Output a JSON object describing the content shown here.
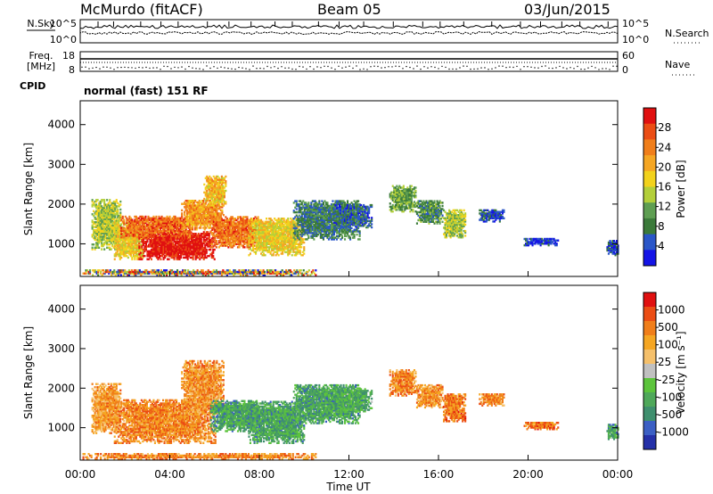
{
  "header": {
    "station": "McMurdo (fitACF)",
    "beam": "Beam 05",
    "date": "03/Jun/2015"
  },
  "left_labels": {
    "nsky": "N.Sky",
    "freq": "Freq.",
    "freq_unit": "[MHz]",
    "cpid": "CPID"
  },
  "right_labels": {
    "nsearch": "N.Search",
    "nave": "Nave"
  },
  "noise_panel": {
    "left_ticks": [
      "10^5",
      "10^0"
    ],
    "right_ticks": [
      "10^5",
      "10^0"
    ]
  },
  "freq_panel": {
    "left_ticks": [
      "18",
      "8"
    ],
    "right_ticks": [
      "60",
      "0"
    ]
  },
  "cpid_text": "normal (fast) 151 RF",
  "chart_data": [
    {
      "type": "heatmap",
      "title": "",
      "xlabel": "Time UT",
      "ylabel": "Slant Range [km]",
      "x_ticks": [
        "00:00",
        "04:00",
        "08:00",
        "12:00",
        "16:00",
        "20:00",
        "00:00"
      ],
      "xlim": [
        0,
        24
      ],
      "ylim": [
        180,
        4600
      ],
      "y_ticks": [
        1000,
        2000,
        3000,
        4000
      ],
      "colorbar": {
        "label": "Power [dB]",
        "ticks": [
          4,
          8,
          12,
          16,
          20,
          24,
          28
        ],
        "range": [
          0,
          32
        ],
        "colors": [
          "#1414e6",
          "#2a56c8",
          "#3b7a3a",
          "#5e9e52",
          "#b3cf3a",
          "#f2d21c",
          "#f5a623",
          "#f07e1a",
          "#eb4d14",
          "#e01010"
        ]
      },
      "regions": [
        {
          "t0": 0.1,
          "t1": 10.5,
          "r0": 200,
          "r1": 330,
          "level": 5
        },
        {
          "t0": 0.5,
          "t1": 1.8,
          "r0": 850,
          "r1": 2100,
          "level": 0.45
        },
        {
          "t0": 1.5,
          "t1": 2.8,
          "r0": 600,
          "r1": 1550,
          "level": 0.55
        },
        {
          "t0": 2.6,
          "t1": 6.0,
          "r0": 600,
          "r1": 1300,
          "level": 0.96
        },
        {
          "t0": 1.8,
          "t1": 5.0,
          "r0": 1150,
          "r1": 1700,
          "level": 0.8
        },
        {
          "t0": 4.5,
          "t1": 6.4,
          "r0": 1350,
          "r1": 2100,
          "level": 0.7
        },
        {
          "t0": 5.5,
          "t1": 6.5,
          "r0": 2000,
          "r1": 2700,
          "level": 0.6
        },
        {
          "t0": 5.8,
          "t1": 8.0,
          "r0": 900,
          "r1": 1700,
          "level": 0.78
        },
        {
          "t0": 7.5,
          "t1": 10.0,
          "r0": 700,
          "r1": 1650,
          "level": 0.55
        },
        {
          "t0": 9.5,
          "t1": 12.5,
          "r0": 1100,
          "r1": 2100,
          "level": 0.25
        },
        {
          "t0": 11.3,
          "t1": 13.0,
          "r0": 1400,
          "r1": 2000,
          "level": 0.2
        },
        {
          "t0": 13.8,
          "t1": 15.0,
          "r0": 1800,
          "r1": 2450,
          "level": 0.35
        },
        {
          "t0": 15.0,
          "t1": 16.2,
          "r0": 1500,
          "r1": 2100,
          "level": 0.3
        },
        {
          "t0": 16.2,
          "t1": 17.2,
          "r0": 1150,
          "r1": 1850,
          "level": 0.45
        },
        {
          "t0": 17.8,
          "t1": 18.9,
          "r0": 1550,
          "r1": 1850,
          "level": 0.15
        },
        {
          "t0": 19.8,
          "t1": 21.3,
          "r0": 950,
          "r1": 1150,
          "level": 0.12
        },
        {
          "t0": 23.5,
          "t1": 24.0,
          "r0": 700,
          "r1": 1100,
          "level": 0.15
        }
      ]
    },
    {
      "type": "heatmap",
      "title": "",
      "xlabel": "Time UT",
      "ylabel": "Slant Range [km]",
      "x_ticks": [
        "00:00",
        "04:00",
        "08:00",
        "12:00",
        "16:00",
        "20:00",
        "00:00"
      ],
      "xlim": [
        0,
        24
      ],
      "ylim": [
        180,
        4600
      ],
      "y_ticks": [
        1000,
        2000,
        3000,
        4000
      ],
      "colorbar": {
        "label": "Velocity [m s⁻¹]",
        "ticks": [
          "1000",
          "500",
          "100",
          "25",
          "-25",
          "-100",
          "-500",
          "-1000"
        ],
        "range": [
          -1200,
          1200
        ],
        "colors": [
          "#2430a8",
          "#3b5fc4",
          "#3f8f6e",
          "#4fa85a",
          "#5cc43c",
          "#c0c0c0",
          "#f5c06b",
          "#f5a623",
          "#f07e1a",
          "#eb4d14",
          "#e01010"
        ]
      },
      "regions": [
        {
          "t0": 0.1,
          "t1": 10.5,
          "r0": 200,
          "r1": 330,
          "level": 0.75
        },
        {
          "t0": 0.5,
          "t1": 1.8,
          "r0": 850,
          "r1": 2100,
          "level": 0.7
        },
        {
          "t0": 1.5,
          "t1": 6.0,
          "r0": 600,
          "r1": 1700,
          "level": 0.75
        },
        {
          "t0": 4.5,
          "t1": 6.4,
          "r0": 1350,
          "r1": 2700,
          "level": 0.72
        },
        {
          "t0": 5.8,
          "t1": 8.0,
          "r0": 900,
          "r1": 1700,
          "level": 0.3
        },
        {
          "t0": 7.5,
          "t1": 10.0,
          "r0": 600,
          "r1": 1650,
          "level": 0.3
        },
        {
          "t0": 9.5,
          "t1": 12.5,
          "r0": 1100,
          "r1": 2100,
          "level": 0.3
        },
        {
          "t0": 11.3,
          "t1": 13.0,
          "r0": 1400,
          "r1": 2000,
          "level": 0.32
        },
        {
          "t0": 13.8,
          "t1": 15.0,
          "r0": 1800,
          "r1": 2450,
          "level": 0.74
        },
        {
          "t0": 15.0,
          "t1": 16.2,
          "r0": 1500,
          "r1": 2100,
          "level": 0.72
        },
        {
          "t0": 16.2,
          "t1": 17.2,
          "r0": 1150,
          "r1": 1850,
          "level": 0.78
        },
        {
          "t0": 17.8,
          "t1": 18.9,
          "r0": 1550,
          "r1": 1850,
          "level": 0.75
        },
        {
          "t0": 19.8,
          "t1": 21.3,
          "r0": 950,
          "r1": 1150,
          "level": 0.8
        },
        {
          "t0": 23.5,
          "t1": 24.0,
          "r0": 700,
          "r1": 1100,
          "level": 0.3
        }
      ]
    }
  ]
}
